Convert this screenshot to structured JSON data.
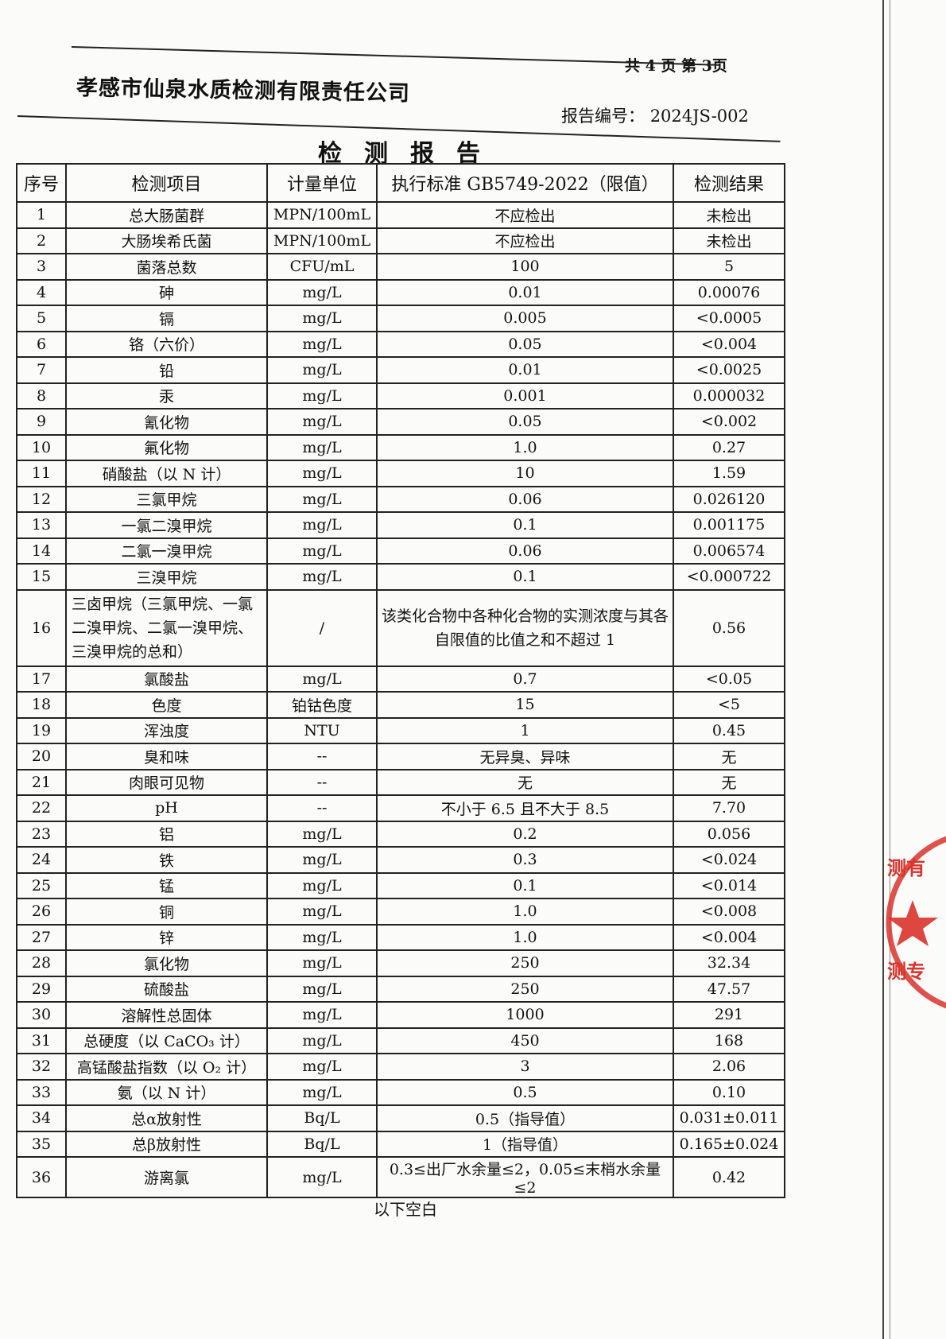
{
  "header": {
    "page_info": "共 4 页  第 3页",
    "company": "孝感市仙泉水质检测有限责任公司",
    "report_number_label": "报告编号：",
    "report_number": "2024JS-002",
    "title": "检测报告"
  },
  "table": {
    "columns": [
      "序号",
      "检测项目",
      "计量单位",
      "执行标准 GB5749-2022（限值）",
      "检测结果"
    ],
    "rows": [
      [
        "1",
        "总大肠菌群",
        "MPN/100mL",
        "不应检出",
        "未检出"
      ],
      [
        "2",
        "大肠埃希氏菌",
        "MPN/100mL",
        "不应检出",
        "未检出"
      ],
      [
        "3",
        "菌落总数",
        "CFU/mL",
        "100",
        "5"
      ],
      [
        "4",
        "砷",
        "mg/L",
        "0.01",
        "0.00076"
      ],
      [
        "5",
        "镉",
        "mg/L",
        "0.005",
        "<0.0005"
      ],
      [
        "6",
        "铬（六价）",
        "mg/L",
        "0.05",
        "<0.004"
      ],
      [
        "7",
        "铅",
        "mg/L",
        "0.01",
        "<0.0025"
      ],
      [
        "8",
        "汞",
        "mg/L",
        "0.001",
        "0.000032"
      ],
      [
        "9",
        "氰化物",
        "mg/L",
        "0.05",
        "<0.002"
      ],
      [
        "10",
        "氟化物",
        "mg/L",
        "1.0",
        "0.27"
      ],
      [
        "11",
        "硝酸盐（以 N 计）",
        "mg/L",
        "10",
        "1.59"
      ],
      [
        "12",
        "三氯甲烷",
        "mg/L",
        "0.06",
        "0.026120"
      ],
      [
        "13",
        "一氯二溴甲烷",
        "mg/L",
        "0.1",
        "0.001175"
      ],
      [
        "14",
        "二氯一溴甲烷",
        "mg/L",
        "0.06",
        "0.006574"
      ],
      [
        "15",
        "三溴甲烷",
        "mg/L",
        "0.1",
        "<0.000722"
      ],
      [
        "16",
        "三卤甲烷（三氯甲烷、一氯二溴甲烷、二氯一溴甲烷、三溴甲烷的总和）",
        "/",
        "该类化合物中各种化合物的实测浓度与其各自限值的比值之和不超过 1",
        "0.56"
      ],
      [
        "17",
        "氯酸盐",
        "mg/L",
        "0.7",
        "<0.05"
      ],
      [
        "18",
        "色度",
        "铂钴色度",
        "15",
        "<5"
      ],
      [
        "19",
        "浑浊度",
        "NTU",
        "1",
        "0.45"
      ],
      [
        "20",
        "臭和味",
        "--",
        "无异臭、异味",
        "无"
      ],
      [
        "21",
        "肉眼可见物",
        "--",
        "无",
        "无"
      ],
      [
        "22",
        "pH",
        "--",
        "不小于 6.5 且不大于 8.5",
        "7.70"
      ],
      [
        "23",
        "铝",
        "mg/L",
        "0.2",
        "0.056"
      ],
      [
        "24",
        "铁",
        "mg/L",
        "0.3",
        "<0.024"
      ],
      [
        "25",
        "锰",
        "mg/L",
        "0.1",
        "<0.014"
      ],
      [
        "26",
        "铜",
        "mg/L",
        "1.0",
        "<0.008"
      ],
      [
        "27",
        "锌",
        "mg/L",
        "1.0",
        "<0.004"
      ],
      [
        "28",
        "氯化物",
        "mg/L",
        "250",
        "32.34"
      ],
      [
        "29",
        "硫酸盐",
        "mg/L",
        "250",
        "47.57"
      ],
      [
        "30",
        "溶解性总固体",
        "mg/L",
        "1000",
        "291"
      ],
      [
        "31",
        "总硬度（以 CaCO₃ 计）",
        "mg/L",
        "450",
        "168"
      ],
      [
        "32",
        "高锰酸盐指数（以 O₂ 计）",
        "mg/L",
        "3",
        "2.06"
      ],
      [
        "33",
        "氨（以 N 计）",
        "mg/L",
        "0.5",
        "0.10"
      ],
      [
        "34",
        "总α放射性",
        "Bq/L",
        "0.5（指导值）",
        "0.031±0.011"
      ],
      [
        "35",
        "总β放射性",
        "Bq/L",
        "1（指导值）",
        "0.165±0.024"
      ],
      [
        "36",
        "游离氯",
        "mg/L",
        "0.3≤出厂水余量≤2，0.05≤末梢水余量≤2",
        "0.42"
      ]
    ]
  },
  "footer": "以下空白",
  "stamp": {
    "text": "检测专用",
    "color": "#d9332b"
  }
}
